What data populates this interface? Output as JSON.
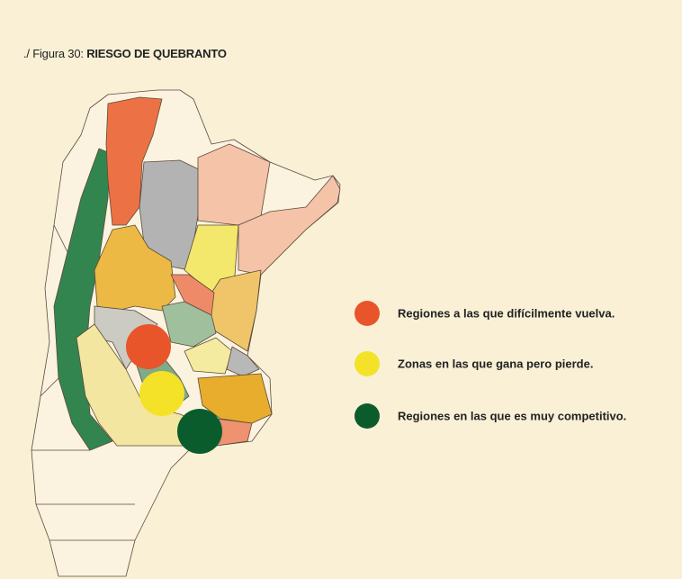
{
  "figure": {
    "label": "./ Figura 30:",
    "title": "RIESGO DE QUEBRANTO"
  },
  "legend": [
    {
      "label": "Regiones a las que difícilmente vuelva.",
      "color": "#e8552a"
    },
    {
      "label": "Zonas en las que gana pero pierde.",
      "color": "#f4e229"
    },
    {
      "label": "Regiones en las que es muy competitivo.",
      "color": "#0b5c2c"
    }
  ]
}
